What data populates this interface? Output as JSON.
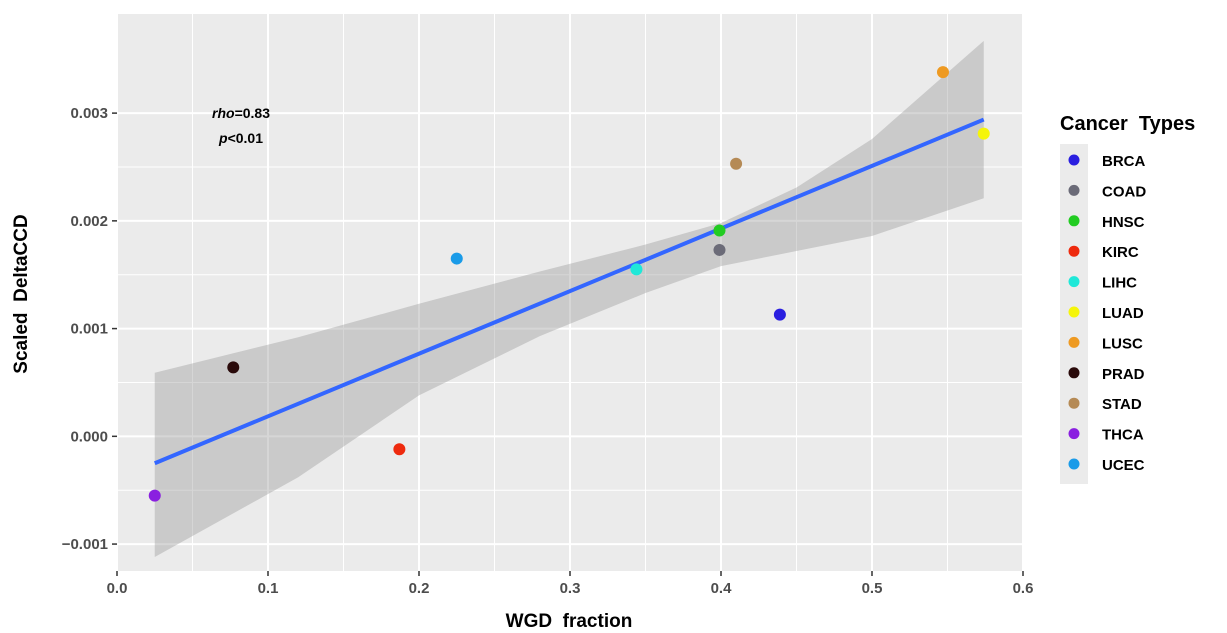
{
  "chart_data": {
    "type": "scatter",
    "xlabel": "WGD  fraction",
    "ylabel": "Scaled  DeltaCCD",
    "xlim": [
      0.0,
      0.6
    ],
    "ylim": [
      -0.00125,
      0.00392
    ],
    "x_ticks": [
      0.0,
      0.1,
      0.2,
      0.3,
      0.4,
      0.5,
      0.6
    ],
    "x_tick_labels": [
      "0.0",
      "0.1",
      "0.2",
      "0.3",
      "0.4",
      "0.5",
      "0.6"
    ],
    "y_ticks": [
      -0.001,
      0.0,
      0.001,
      0.002,
      0.003
    ],
    "y_tick_labels": [
      "−0.001",
      "0.000",
      "0.001",
      "0.002",
      "0.003"
    ],
    "grid": true,
    "legend": {
      "title": "Cancer  Types",
      "position": "right"
    },
    "series": [
      {
        "name": "BRCA",
        "color": "#2a1fe0",
        "x": 0.439,
        "y": 0.00113
      },
      {
        "name": "COAD",
        "color": "#6b6b78",
        "x": 0.399,
        "y": 0.00173
      },
      {
        "name": "HNSC",
        "color": "#22cc22",
        "x": 0.399,
        "y": 0.00191
      },
      {
        "name": "KIRC",
        "color": "#ee2a0e",
        "x": 0.187,
        "y": -0.00012
      },
      {
        "name": "LIHC",
        "color": "#1fe8d8",
        "x": 0.344,
        "y": 0.00155
      },
      {
        "name": "LUAD",
        "color": "#f5f50a",
        "x": 0.574,
        "y": 0.00281
      },
      {
        "name": "LUSC",
        "color": "#ee9a22",
        "x": 0.547,
        "y": 0.00338
      },
      {
        "name": "PRAD",
        "color": "#2a0a0a",
        "x": 0.077,
        "y": 0.00064
      },
      {
        "name": "STAD",
        "color": "#b58a55",
        "x": 0.41,
        "y": 0.00253
      },
      {
        "name": "THCA",
        "color": "#8a1fe0",
        "x": 0.025,
        "y": -0.00055
      },
      {
        "name": "UCEC",
        "color": "#1a9be8",
        "x": 0.225,
        "y": 0.00165
      }
    ],
    "fit_line": {
      "color": "#3366ff",
      "x": [
        0.025,
        0.574
      ],
      "y": [
        -0.00025,
        0.00294
      ]
    },
    "confidence_band": {
      "color": "#999999",
      "x": [
        0.025,
        0.12,
        0.2,
        0.28,
        0.35,
        0.4,
        0.45,
        0.5,
        0.574
      ],
      "upper": [
        0.00059,
        0.00092,
        0.00123,
        0.00153,
        0.00178,
        0.00198,
        0.00231,
        0.00276,
        0.00367
      ],
      "lower": [
        -0.00112,
        -0.00038,
        0.00038,
        0.00093,
        0.00133,
        0.00158,
        0.00172,
        0.00186,
        0.00221
      ]
    },
    "annotations": [
      {
        "label": "rho",
        "value": "=0.83"
      },
      {
        "label": "p",
        "value": "<0.01"
      }
    ]
  }
}
